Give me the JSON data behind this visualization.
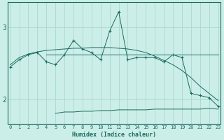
{
  "xlabel": "Humidex (Indice chaleur)",
  "background_color": "#cceee8",
  "grid_color": "#aad8d0",
  "line_color": "#1a6b60",
  "x": [
    0,
    1,
    2,
    3,
    4,
    5,
    6,
    7,
    8,
    9,
    10,
    11,
    12,
    13,
    14,
    15,
    16,
    17,
    18,
    19,
    20,
    21,
    22,
    23
  ],
  "line_spiky": [
    2.45,
    2.55,
    2.62,
    2.65,
    2.52,
    2.48,
    2.62,
    2.82,
    2.7,
    2.65,
    2.55,
    2.95,
    3.22,
    2.55,
    2.58,
    2.58,
    2.58,
    2.52,
    2.62,
    2.58,
    2.08,
    2.05,
    2.02,
    1.9
  ],
  "line_diagonal": [
    2.48,
    2.58,
    2.63,
    2.66,
    2.68,
    2.69,
    2.7,
    2.71,
    2.71,
    2.72,
    2.72,
    2.72,
    2.71,
    2.7,
    2.68,
    2.65,
    2.6,
    2.54,
    2.48,
    2.4,
    2.3,
    2.18,
    2.08,
    1.98
  ],
  "line_flat_mid": [
    2.62,
    2.62,
    2.62,
    2.62,
    2.62,
    2.62,
    2.62,
    2.62,
    2.62,
    2.62,
    2.62,
    2.62,
    2.62,
    2.62,
    2.62,
    2.62,
    2.62,
    2.62,
    2.62,
    2.62,
    2.62,
    2.62,
    2.62,
    2.62
  ],
  "line_bottom": [
    null,
    null,
    null,
    null,
    null,
    1.8,
    1.82,
    1.82,
    1.83,
    1.83,
    1.84,
    1.84,
    1.85,
    1.85,
    1.85,
    1.85,
    1.86,
    1.86,
    1.86,
    1.86,
    1.86,
    1.86,
    1.87,
    1.86
  ],
  "ylim": [
    1.65,
    3.35
  ],
  "xlim": [
    -0.3,
    23.3
  ],
  "yticks": [
    2,
    3
  ],
  "xtick_labels": [
    "0",
    "1",
    "2",
    "3",
    "4",
    "5",
    "6",
    "7",
    "8",
    "9",
    "10",
    "11",
    "12",
    "13",
    "14",
    "15",
    "16",
    "17",
    "18",
    "19",
    "20",
    "21",
    "22",
    "23"
  ]
}
